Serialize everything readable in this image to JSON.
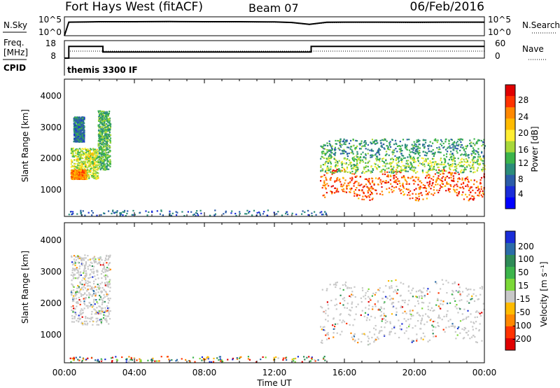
{
  "header": {
    "station": "Fort Hays West (fitACF)",
    "beam": "Beam 07",
    "date": "06/Feb/2016"
  },
  "noise_panel": {
    "left_label": "N.Sky",
    "left_ticks": [
      "10^5",
      "10^0"
    ],
    "right_label": "N.Search",
    "right_ticks": [
      "10^5",
      "10^0"
    ]
  },
  "freq_panel": {
    "left_label_1": "Freq.",
    "left_label_2": "[MHz]",
    "left_ticks": [
      "18",
      "8"
    ],
    "right_label": "Nave",
    "right_ticks": [
      "60",
      "0"
    ]
  },
  "cpid": {
    "label": "CPID",
    "value": "themis 3300 IF"
  },
  "power_panel": {
    "ylabel": "Slant Range [km]",
    "yticks": [
      "4000",
      "3000",
      "2000",
      "1000"
    ],
    "colorbar_label": "Power [dB]",
    "colorbar_ticks": [
      "28",
      "24",
      "20",
      "16",
      "12",
      "8",
      "4"
    ],
    "colorbar_colors": [
      "#e00000",
      "#ff3300",
      "#ff8800",
      "#ffbb00",
      "#ffee33",
      "#a8d83a",
      "#3cb44b",
      "#2b8c7a",
      "#2b5ca8",
      "#1a2dd8",
      "#0000ff"
    ]
  },
  "velocity_panel": {
    "ylabel": "Slant Range [km]",
    "yticks": [
      "4000",
      "3000",
      "2000",
      "1000"
    ],
    "colorbar_label": "Velocity [m s⁻¹]",
    "colorbar_ticks": [
      "200",
      "100",
      "50",
      "15",
      "-15",
      "-50",
      "-100",
      "-200"
    ],
    "colorbar_colors": [
      "#1a2dd8",
      "#2b6ca8",
      "#2e8b57",
      "#3cb44b",
      "#7cd838",
      "#c8c8c8",
      "#ffbb00",
      "#ff8800",
      "#ff3300",
      "#e00000"
    ]
  },
  "time_axis": {
    "xlabel": "Time UT",
    "ticks": [
      "00:00",
      "04:00",
      "08:00",
      "12:00",
      "16:00",
      "20:00",
      "00:00"
    ]
  },
  "chart_data": [
    {
      "type": "line",
      "title": "N.Sky / N.Search",
      "x": [
        0,
        0.25,
        2,
        4,
        6,
        8,
        10,
        12,
        13,
        14,
        14.5,
        15,
        16,
        18,
        20,
        22,
        24
      ],
      "series": [
        {
          "name": "N.Sky",
          "values": [
            0,
            3.6,
            3.7,
            3.7,
            3.75,
            3.7,
            3.7,
            3.65,
            3.5,
            3.0,
            3.3,
            3.55,
            3.6,
            3.6,
            3.55,
            3.6,
            3.6
          ]
        },
        {
          "name": "N.Search",
          "values": [
            0,
            3.5,
            3.6,
            3.6,
            3.65,
            3.6,
            3.6,
            3.55,
            3.4,
            2.9,
            3.2,
            3.4,
            3.5,
            3.5,
            3.45,
            3.5,
            3.5
          ]
        }
      ],
      "ylim": [
        0,
        5
      ]
    },
    {
      "type": "line",
      "title": "Freq. / Nave",
      "x": [
        0,
        0.25,
        0.25,
        2.2,
        2.2,
        14.1,
        14.1,
        24
      ],
      "series": [
        {
          "name": "Freq. [MHz]",
          "values": [
            8,
            8,
            14.7,
            14.7,
            11.5,
            11.5,
            14.7,
            14.7
          ]
        },
        {
          "name": "Nave",
          "values": [
            0,
            0,
            24,
            24,
            24,
            24,
            24,
            24
          ]
        }
      ],
      "ylim": [
        8,
        18
      ]
    },
    {
      "type": "heatmap",
      "title": "Power [dB]",
      "xlim": [
        0,
        24
      ],
      "ylim": [
        180,
        4600
      ],
      "regions": [
        {
          "t0": 0.35,
          "t1": 1.9,
          "r0": 1400,
          "r1": 2400,
          "level": 16
        },
        {
          "t0": 0.35,
          "t1": 1.2,
          "r0": 1400,
          "r1": 1700,
          "level": 24
        },
        {
          "t0": 0.5,
          "t1": 1.1,
          "r0": 2600,
          "r1": 3400,
          "level": 8
        },
        {
          "t0": 1.9,
          "t1": 2.6,
          "r0": 1700,
          "r1": 3600,
          "level": 12
        },
        {
          "t0": 14.6,
          "t1": 24,
          "r0": 850,
          "r1": 1600,
          "level": 26
        },
        {
          "t0": 14.6,
          "t1": 24,
          "r0": 1600,
          "r1": 2100,
          "level": 14
        },
        {
          "t0": 14.6,
          "t1": 24,
          "r0": 2100,
          "r1": 2700,
          "level": 10
        },
        {
          "t0": 0.2,
          "t1": 15,
          "r0": 190,
          "r1": 400,
          "level": 6
        }
      ]
    },
    {
      "type": "heatmap",
      "title": "Velocity [m s-1]",
      "xlim": [
        0,
        24
      ],
      "ylim": [
        180,
        4600
      ],
      "regions": [
        {
          "t0": 0.35,
          "t1": 2.6,
          "r0": 1400,
          "r1": 3600,
          "level": 0
        },
        {
          "t0": 14.6,
          "t1": 24,
          "r0": 900,
          "r1": 2700,
          "level": 0
        },
        {
          "t0": 0.2,
          "t1": 15,
          "r0": 190,
          "r1": 400,
          "level": 30
        }
      ]
    }
  ]
}
